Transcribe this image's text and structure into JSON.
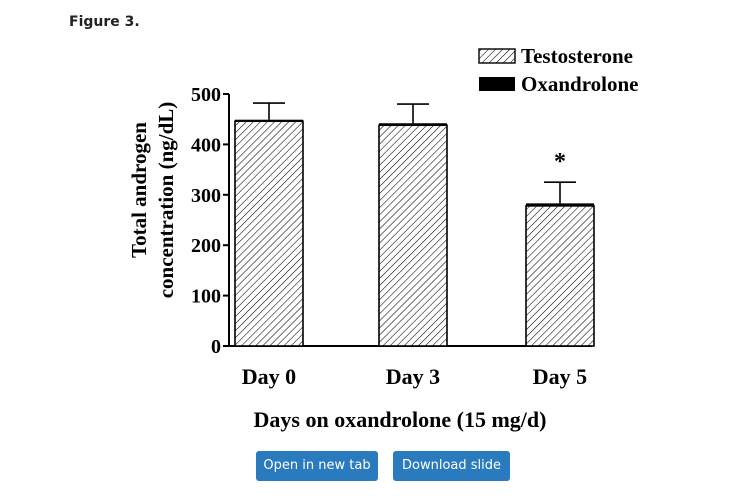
{
  "figure_label": "Figure 3.",
  "buttons": {
    "open_tab": "Open in new tab",
    "download_slide": "Download slide"
  },
  "colors": {
    "button_bg": "#2a7bbd",
    "button_text": "#ffffff",
    "ink": "#000000"
  },
  "chart_data": {
    "type": "bar",
    "categories": [
      "Day 0",
      "Day 3",
      "Day 5"
    ],
    "series": [
      {
        "name": "Testosterone",
        "values": [
          446,
          438,
          278
        ],
        "errors": [
          36,
          42,
          47
        ],
        "pattern": "hatched"
      },
      {
        "name": "Oxandrolone",
        "values": [
          3,
          4,
          5
        ],
        "pattern": "solid"
      }
    ],
    "xlabel": "Days on oxandrolone (15 mg/d)",
    "ylabel_lines": [
      "Total androgen",
      "concentration (ng/dL)"
    ],
    "ylim": [
      0,
      500
    ],
    "yticks": [
      0,
      100,
      200,
      300,
      400,
      500
    ],
    "annotations": [
      {
        "category": "Day 5",
        "text": "*"
      }
    ],
    "legend_position": "top-right",
    "grid": false
  }
}
